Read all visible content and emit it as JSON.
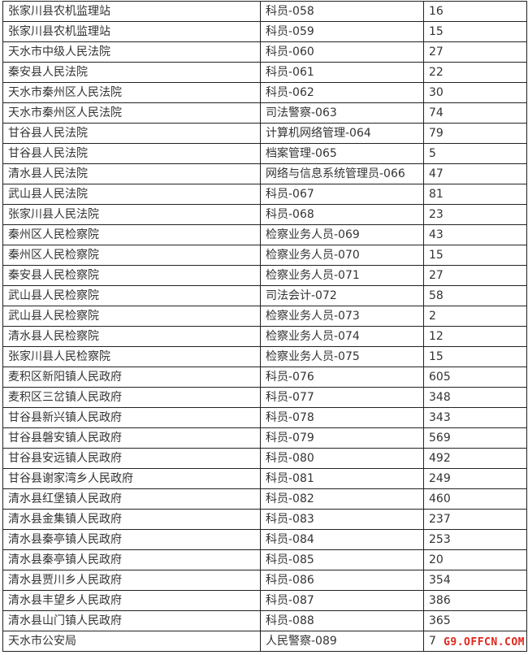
{
  "rows": [
    [
      "张家川县农机监理站",
      "科员-058",
      "16"
    ],
    [
      "张家川县农机监理站",
      "科员-059",
      "15"
    ],
    [
      "天水市中级人民法院",
      "科员-060",
      "27"
    ],
    [
      "秦安县人民法院",
      "科员-061",
      "22"
    ],
    [
      "天水市秦州区人民法院",
      "科员-062",
      "30"
    ],
    [
      "天水市秦州区人民法院",
      "司法警察-063",
      "74"
    ],
    [
      "甘谷县人民法院",
      "计算机网络管理-064",
      "79"
    ],
    [
      "甘谷县人民法院",
      "档案管理-065",
      "5"
    ],
    [
      "清水县人民法院",
      "网络与信息系统管理员-066",
      "47"
    ],
    [
      "武山县人民法院",
      "科员-067",
      "81"
    ],
    [
      "张家川县人民法院",
      "科员-068",
      "23"
    ],
    [
      "秦州区人民检察院",
      "检察业务人员-069",
      "43"
    ],
    [
      "秦州区人民检察院",
      "检察业务人员-070",
      "15"
    ],
    [
      "秦安县人民检察院",
      "检察业务人员-071",
      "27"
    ],
    [
      "武山县人民检察院",
      "司法会计-072",
      "58"
    ],
    [
      "武山县人民检察院",
      "检察业务人员-073",
      "2"
    ],
    [
      "清水县人民检察院",
      "检察业务人员-074",
      "12"
    ],
    [
      "张家川县人民检察院",
      "检察业务人员-075",
      "15"
    ],
    [
      "麦积区新阳镇人民政府",
      "科员-076",
      "605"
    ],
    [
      "麦积区三岔镇人民政府",
      "科员-077",
      "348"
    ],
    [
      "甘谷县新兴镇人民政府",
      "科员-078",
      "343"
    ],
    [
      "甘谷县磐安镇人民政府",
      "科员-079",
      "569"
    ],
    [
      "甘谷县安远镇人民政府",
      "科员-080",
      "492"
    ],
    [
      "甘谷县谢家湾乡人民政府",
      "科员-081",
      "249"
    ],
    [
      "清水县红堡镇人民政府",
      "科员-082",
      "460"
    ],
    [
      "清水县金集镇人民政府",
      "科员-083",
      "237"
    ],
    [
      "清水县秦亭镇人民政府",
      "科员-084",
      "253"
    ],
    [
      "清水县秦亭镇人民政府",
      "科员-085",
      "20"
    ],
    [
      "清水县贾川乡人民政府",
      "科员-086",
      "354"
    ],
    [
      "清水县丰望乡人民政府",
      "科员-087",
      "386"
    ],
    [
      "清水县山门镇人民政府",
      "科员-088",
      "365"
    ],
    [
      "天水市公安局",
      "人民警察-089",
      "7"
    ]
  ],
  "watermark": "G9.OFFCN.COM",
  "colors": {
    "watermark": "#e0261c",
    "text": "#333333",
    "border": "#222222"
  }
}
